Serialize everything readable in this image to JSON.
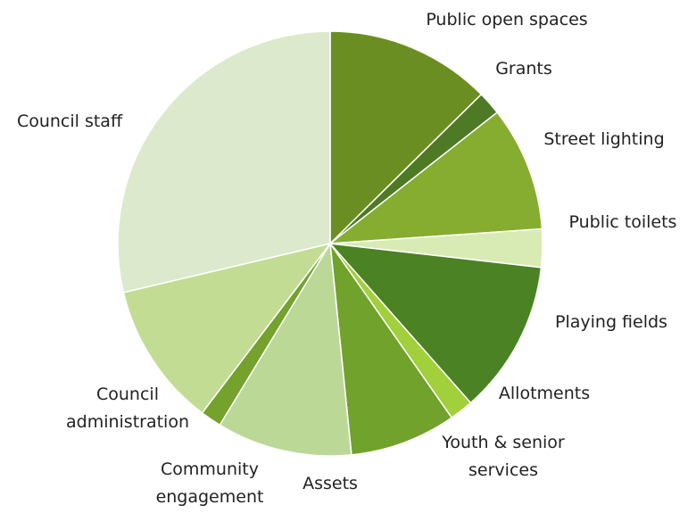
{
  "chart_data": {
    "type": "pie",
    "start_angle_deg": 0,
    "direction": "clockwise",
    "legend": "none",
    "slices": [
      {
        "label": "Public open spaces",
        "value": 12.6,
        "color": "#6b8e23"
      },
      {
        "label": "Grants",
        "value": 1.8,
        "color": "#4e7a26"
      },
      {
        "label": "Street lighting",
        "value": 9.5,
        "color": "#86ad2f"
      },
      {
        "label": "Public toilets",
        "value": 2.9,
        "color": "#d9ebb5"
      },
      {
        "label": "Playing fields",
        "value": 11.7,
        "color": "#4a8224"
      },
      {
        "label": "Allotments",
        "value": 1.8,
        "color": "#a2cf3c"
      },
      {
        "label": "Youth & senior services",
        "value": 8.1,
        "color": "#71a22c"
      },
      {
        "label": "Assets",
        "value": 10.3,
        "color": "#bcd897"
      },
      {
        "label": "Community engagement",
        "value": 1.6,
        "color": "#74a22d"
      },
      {
        "label": "Council administration",
        "value": 11.0,
        "color": "#c2dd93"
      },
      {
        "label": "Council staff",
        "value": 28.7,
        "color": "#dde9cd"
      }
    ]
  }
}
